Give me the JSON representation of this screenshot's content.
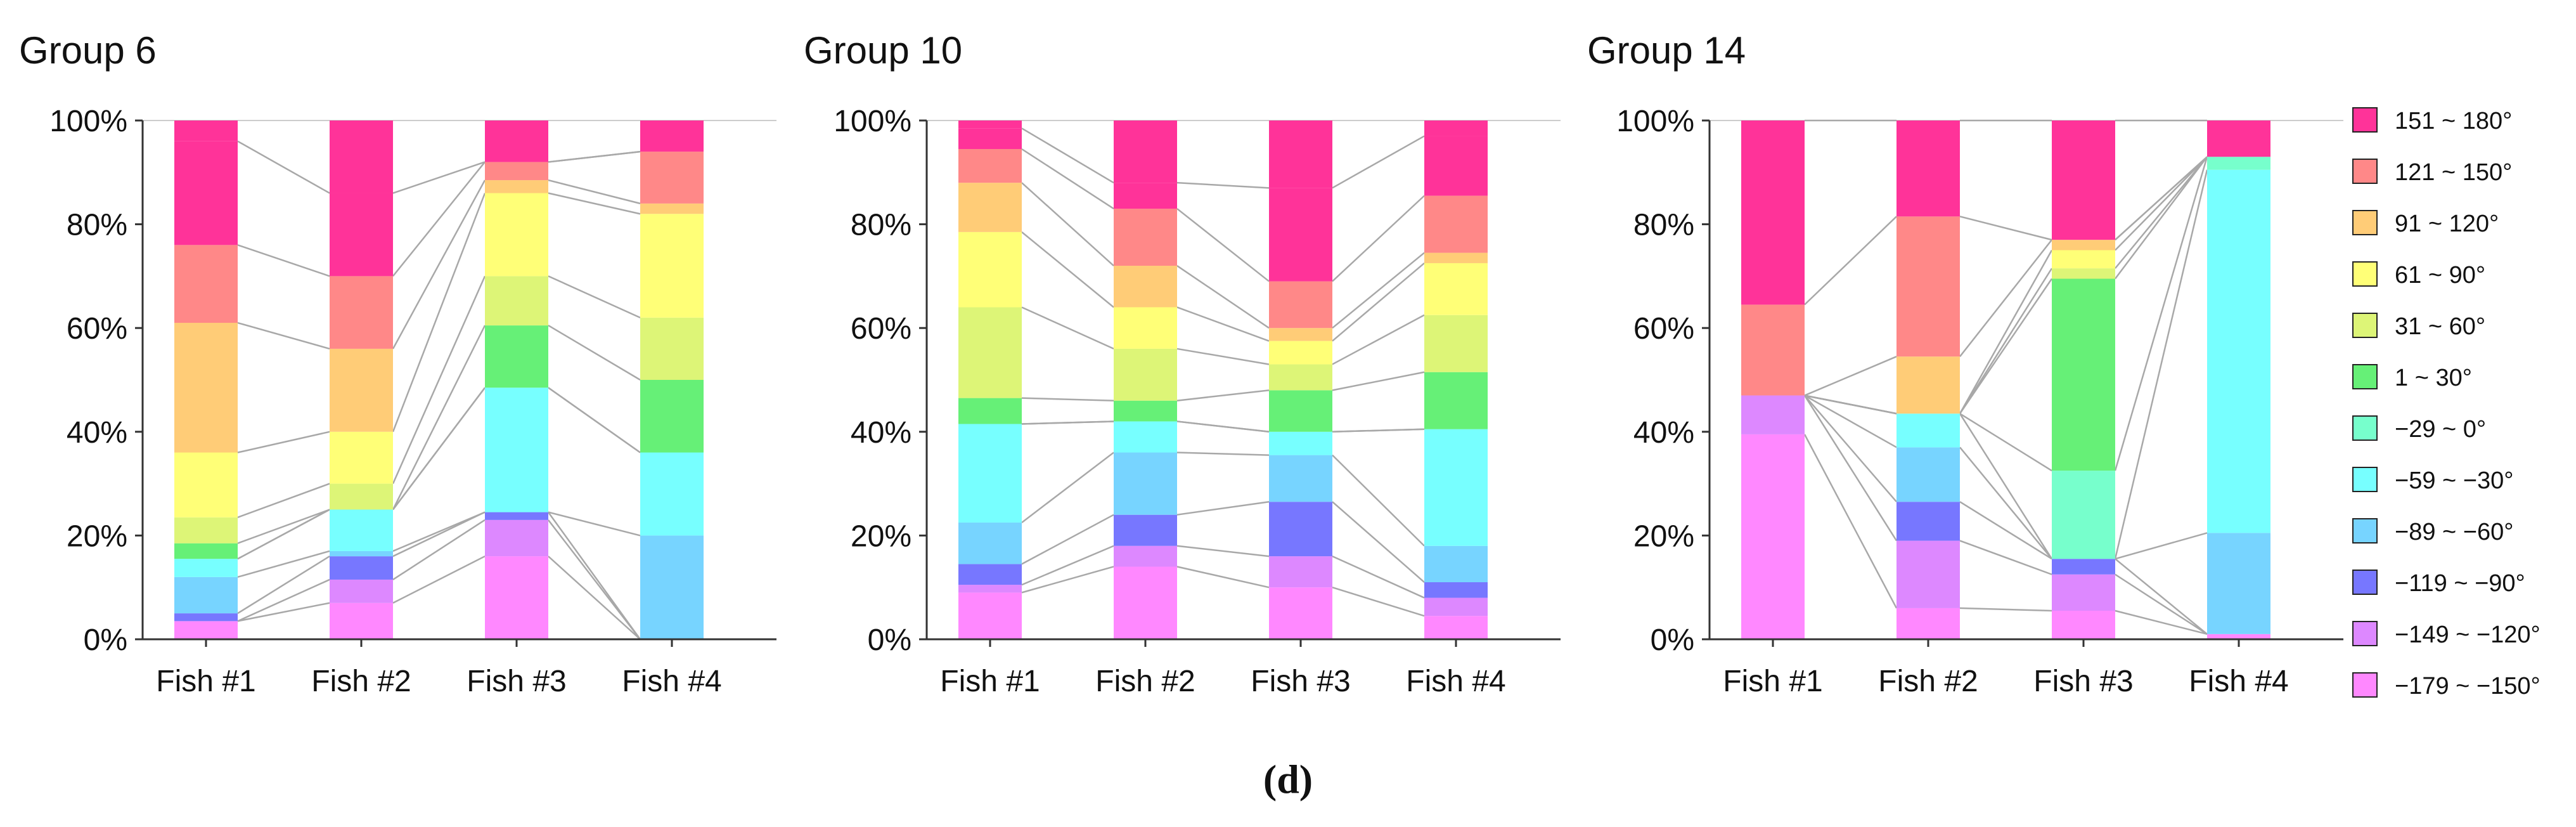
{
  "figure_label": "(d)",
  "legend": {
    "entries": [
      {
        "label": "151 ~ 180°",
        "color": "#FF3399"
      },
      {
        "label": "121 ~ 150°",
        "color": "#FF8888"
      },
      {
        "label": "91 ~ 120°",
        "color": "#FFCC77"
      },
      {
        "label": "61 ~ 90°",
        "color": "#FFFF77"
      },
      {
        "label": "31 ~ 60°",
        "color": "#DDF577"
      },
      {
        "label": "1 ~ 30°",
        "color": "#66F077"
      },
      {
        "label": "−29 ~ 0°",
        "color": "#77FFCC"
      },
      {
        "label": "−59 ~ −30°",
        "color": "#77FFFF"
      },
      {
        "label": "−89 ~ −60°",
        "color": "#77D4FF"
      },
      {
        "label": "−119 ~ −90°",
        "color": "#7777FF"
      },
      {
        "label": "−149 ~ −120°",
        "color": "#DD88FF"
      },
      {
        "label": "−179 ~ −150°",
        "color": "#FF88FF"
      }
    ]
  },
  "chart_data": [
    {
      "type": "bar",
      "stacked": "percent",
      "title": "Group 6",
      "categories": [
        "Fish #1",
        "Fish #2",
        "Fish #3",
        "Fish #4"
      ],
      "y_ticks": [
        "0%",
        "20%",
        "40%",
        "60%",
        "80%",
        "100%"
      ],
      "ylim": [
        0,
        100
      ],
      "series": [
        {
          "name": "−179 ~ −150°",
          "values": [
            3.5,
            7,
            16,
            0
          ]
        },
        {
          "name": "−149 ~ −120°",
          "values": [
            0,
            4.5,
            7,
            0
          ]
        },
        {
          "name": "−119 ~ −90°",
          "values": [
            1.5,
            4.5,
            1.5,
            0
          ]
        },
        {
          "name": "−89 ~ −60°",
          "values": [
            7,
            1,
            0,
            20
          ]
        },
        {
          "name": "−59 ~ −30°",
          "values": [
            3.5,
            8,
            24,
            16
          ]
        },
        {
          "name": "−29 ~ 0°",
          "values": [
            0,
            0,
            0,
            0
          ]
        },
        {
          "name": "1 ~ 30°",
          "values": [
            3,
            0,
            12,
            14
          ]
        },
        {
          "name": "31 ~ 60°",
          "values": [
            5,
            5,
            9.5,
            12
          ]
        },
        {
          "name": "61 ~ 90°",
          "values": [
            12.5,
            10,
            16,
            20
          ]
        },
        {
          "name": "91 ~ 120°",
          "values": [
            25,
            16,
            2.5,
            2
          ]
        },
        {
          "name": "121 ~ 150°",
          "values": [
            15,
            14,
            3.5,
            10
          ]
        },
        {
          "name": "151 ~ 180°",
          "values": [
            20,
            16,
            0,
            0
          ]
        },
        {
          "name": "151 ~ 180°_top",
          "values": [
            4,
            14,
            8,
            6
          ]
        }
      ]
    },
    {
      "type": "bar",
      "stacked": "percent",
      "title": "Group 10",
      "categories": [
        "Fish #1",
        "Fish #2",
        "Fish #3",
        "Fish #4"
      ],
      "y_ticks": [
        "0%",
        "20%",
        "40%",
        "60%",
        "80%",
        "100%"
      ],
      "ylim": [
        0,
        100
      ],
      "series": [
        {
          "name": "−179 ~ −150°",
          "values": [
            9,
            14,
            10,
            4.5
          ]
        },
        {
          "name": "−149 ~ −120°",
          "values": [
            1.5,
            4,
            6,
            3.5
          ]
        },
        {
          "name": "−119 ~ −90°",
          "values": [
            4,
            6,
            10.5,
            3
          ]
        },
        {
          "name": "−89 ~ −60°",
          "values": [
            8,
            12,
            9,
            7
          ]
        },
        {
          "name": "−59 ~ −30°",
          "values": [
            19,
            6,
            4.5,
            22.5
          ]
        },
        {
          "name": "−29 ~ 0°",
          "values": [
            0,
            0,
            0,
            0
          ]
        },
        {
          "name": "1 ~ 30°",
          "values": [
            5,
            4,
            8,
            11
          ]
        },
        {
          "name": "31 ~ 60°",
          "values": [
            17.5,
            10,
            5,
            11
          ]
        },
        {
          "name": "61 ~ 90°",
          "values": [
            14.5,
            8,
            4.5,
            10
          ]
        },
        {
          "name": "91 ~ 120°",
          "values": [
            9.5,
            8,
            2.5,
            2
          ]
        },
        {
          "name": "121 ~ 150°",
          "values": [
            6.5,
            11,
            9,
            11
          ]
        },
        {
          "name": "151 ~ 180°",
          "values": [
            4,
            5,
            18,
            11.5
          ]
        },
        {
          "name": "151 ~ 180°_top",
          "values": [
            1.5,
            12,
            13,
            3
          ]
        }
      ]
    },
    {
      "type": "bar",
      "stacked": "percent",
      "title": "Group 14",
      "categories": [
        "Fish #1",
        "Fish #2",
        "Fish #3",
        "Fish #4"
      ],
      "y_ticks": [
        "0%",
        "20%",
        "40%",
        "60%",
        "80%",
        "100%"
      ],
      "ylim": [
        0,
        100
      ],
      "series": [
        {
          "name": "−179 ~ −150°",
          "values": [
            39.5,
            6,
            5.5,
            1
          ]
        },
        {
          "name": "−149 ~ −120°",
          "values": [
            7.5,
            13,
            7,
            0
          ]
        },
        {
          "name": "−119 ~ −90°",
          "values": [
            0,
            7.5,
            3,
            0
          ]
        },
        {
          "name": "−89 ~ −60°",
          "values": [
            0,
            10.5,
            0,
            19.5
          ]
        },
        {
          "name": "−59 ~ −30°",
          "values": [
            0,
            6.5,
            0,
            70
          ]
        },
        {
          "name": "−29 ~ 0°",
          "values": [
            0,
            0,
            17,
            2.5
          ]
        },
        {
          "name": "1 ~ 30°",
          "values": [
            0,
            0,
            37,
            0
          ]
        },
        {
          "name": "31 ~ 60°",
          "values": [
            0,
            0,
            2,
            0
          ]
        },
        {
          "name": "61 ~ 90°",
          "values": [
            0,
            0,
            3.5,
            0
          ]
        },
        {
          "name": "91 ~ 120°",
          "values": [
            0,
            11,
            2,
            0
          ]
        },
        {
          "name": "121 ~ 150°",
          "values": [
            17.5,
            27,
            0,
            0
          ]
        },
        {
          "name": "151 ~ 180°",
          "values": [
            35.5,
            18.5,
            23,
            7
          ]
        },
        {
          "name": "151 ~ 180°_top",
          "values": [
            0,
            0,
            0,
            0
          ]
        }
      ]
    }
  ]
}
